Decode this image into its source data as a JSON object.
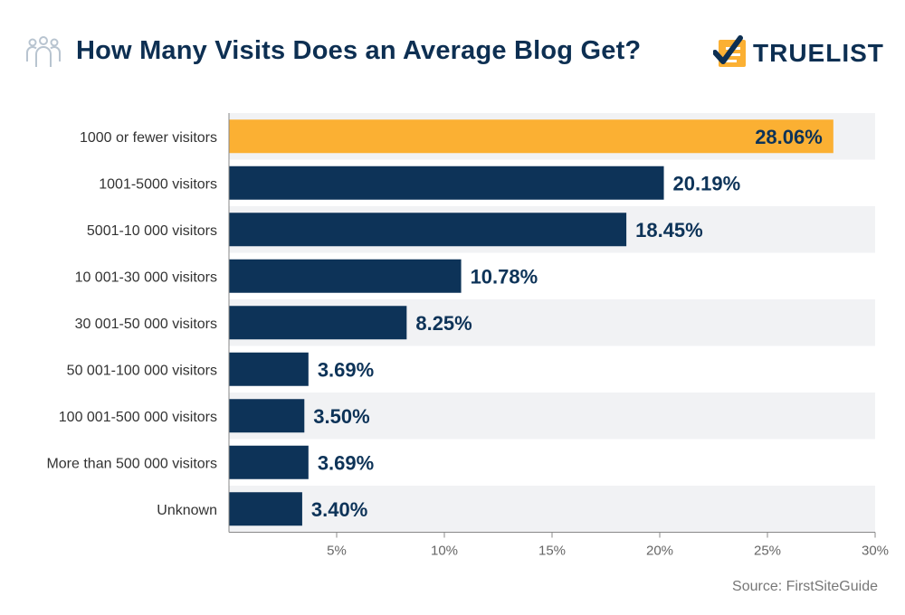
{
  "header": {
    "title": "How Many Visits Does an Average Blog Get?",
    "brand": "TRUELIST"
  },
  "source": "Source: FirstSiteGuide",
  "icons": {
    "title_icon": "people-group-icon",
    "brand_icon": "checklist-logo-icon"
  },
  "colors": {
    "highlight": "#fbb033",
    "bar": "#0d3358",
    "row_band": "#f1f2f4",
    "title": "#0d2f52",
    "axis_text": "#666666"
  },
  "chart_data": {
    "type": "bar",
    "orientation": "horizontal",
    "categories": [
      "1000 or fewer visitors",
      "1001-5000 visitors",
      "5001-10 000 visitors",
      "10 001-30 000 visitors",
      "30 001-50 000 visitors",
      "50 001-100 000 visitors",
      "100 001-500 000 visitors",
      "More than 500 000 visitors",
      "Unknown"
    ],
    "values": [
      28.06,
      20.19,
      18.45,
      10.78,
      8.25,
      3.69,
      3.5,
      3.69,
      3.4
    ],
    "value_labels": [
      "28.06%",
      "20.19%",
      "18.45%",
      "10.78%",
      "8.25%",
      "3.69%",
      "3.50%",
      "3.69%",
      "3.40%"
    ],
    "highlight_index": 0,
    "xlim": [
      0,
      30
    ],
    "xticks": [
      5,
      10,
      15,
      20,
      25,
      30
    ],
    "xtick_labels": [
      "5%",
      "10%",
      "15%",
      "20%",
      "25%",
      "30%"
    ],
    "grid": false,
    "legend": "none"
  }
}
